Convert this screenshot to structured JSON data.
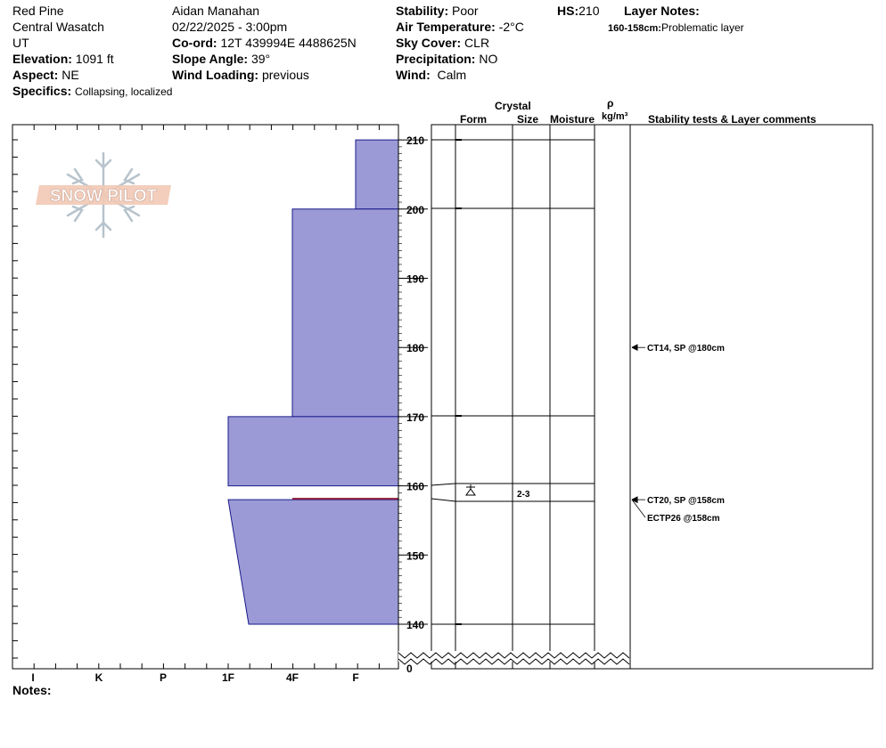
{
  "header": {
    "location": "Red Pine",
    "range": "Central Wasatch",
    "state": "UT",
    "elevation": {
      "label": "Elevation:",
      "value": "1091 ft"
    },
    "aspect": {
      "label": "Aspect:",
      "value": "NE"
    },
    "specifics": {
      "label": "Specifics:",
      "value": "Collapsing, localized"
    },
    "observer": "Aidan Manahan",
    "datetime": "02/22/2025 - 3:00pm",
    "coord": {
      "label": "Co-ord:",
      "value": "12T 439994E 4488625N"
    },
    "slope_angle": {
      "label": "Slope Angle:",
      "value": "39°"
    },
    "wind_loading": {
      "label": "Wind Loading:",
      "value": "previous"
    },
    "stability": {
      "label": "Stability:",
      "value": "Poor"
    },
    "air_temp": {
      "label": "Air Temperature:",
      "value": "-2°C"
    },
    "sky_cover": {
      "label": "Sky Cover:",
      "value": "CLR"
    },
    "precipitation": {
      "label": "Precipitation:",
      "value": "NO"
    },
    "wind": {
      "label": "Wind:",
      "value": "Calm"
    },
    "hs": {
      "label": "HS:",
      "value": "210"
    },
    "layer_notes_title": "Layer Notes:",
    "layer_notes": [
      {
        "range": "160-158cm:",
        "text": "Problematic layer"
      }
    ]
  },
  "logo_text": "SNOW PILOT",
  "column_headers": {
    "crystal": "Crystal",
    "form": "Form",
    "size": "Size",
    "moisture": "Moisture",
    "rho": "ρ",
    "density_unit": "kg/m³",
    "stability_comments": "Stability tests & Layer comments"
  },
  "notes_label": "Notes:",
  "colors": {
    "layer_fill": "#9b9ad6",
    "layer_stroke": "#1a1a8a",
    "weak_layer": "#8b1a3a"
  },
  "chart_data": {
    "type": "snow-profile",
    "hardness_scale": [
      "I",
      "K",
      "P",
      "1F",
      "4F",
      "F"
    ],
    "y_ticks": [
      210,
      200,
      190,
      180,
      170,
      160,
      150,
      140
    ],
    "y_zero_label": "0",
    "y_range": [
      140,
      210
    ],
    "layers": [
      {
        "top": 210,
        "bottom": 200,
        "hardness_top": "F",
        "hardness_bottom": "F"
      },
      {
        "top": 200,
        "bottom": 170,
        "hardness_top": "4F",
        "hardness_bottom": "4F"
      },
      {
        "top": 170,
        "bottom": 160,
        "hardness_top": "1F",
        "hardness_bottom": "1F"
      },
      {
        "top": 158,
        "bottom": 140,
        "hardness_top": "1F",
        "hardness_bottom": "1F+"
      }
    ],
    "weak_layer_depth": 158,
    "boundaries": [
      210,
      200,
      170,
      160,
      158,
      140
    ],
    "crystal_layers": [
      {
        "top": 160,
        "bottom": 158,
        "form": "near-surface-faceted",
        "size": "2-3"
      }
    ],
    "tests": [
      {
        "depth": 180,
        "label": "CT14, SP @180cm"
      },
      {
        "depth": 158,
        "label": "CT20, SP @158cm"
      },
      {
        "depth": 158,
        "label": "ECTP26 @158cm"
      }
    ]
  }
}
